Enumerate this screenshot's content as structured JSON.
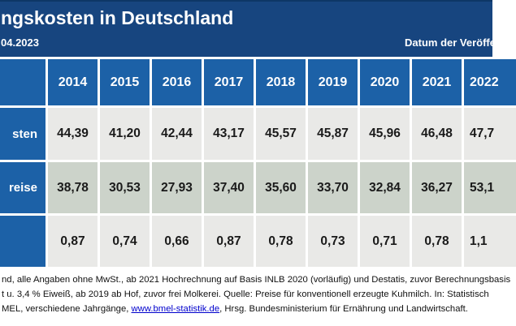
{
  "colors": {
    "banner_blue": "#17457f",
    "cell_blue": "#1c61a7",
    "row_light_gray": "#e9e9e7",
    "row_sage_green": "#ccd3ca",
    "link_blue": "#0000cc"
  },
  "header": {
    "title": "ngskosten in Deutschland",
    "date": "04.2023",
    "date_label": "Datum der Veröffe"
  },
  "table": {
    "years": [
      "2014",
      "2015",
      "2016",
      "2017",
      "2018",
      "2019",
      "2020",
      "2021",
      "2022"
    ],
    "rows": [
      {
        "label": "sten",
        "values": [
          "44,39",
          "41,20",
          "42,44",
          "43,17",
          "45,57",
          "45,87",
          "45,96",
          "46,48",
          "47,7"
        ]
      },
      {
        "label": "reise",
        "values": [
          "38,78",
          "30,53",
          "27,93",
          "37,40",
          "35,60",
          "33,70",
          "32,84",
          "36,27",
          "53,1"
        ]
      },
      {
        "label": "",
        "values": [
          "0,87",
          "0,74",
          "0,66",
          "0,87",
          "0,78",
          "0,73",
          "0,71",
          "0,78",
          "1,1"
        ]
      }
    ]
  },
  "footer": {
    "line1": "nd, alle Angaben ohne MwSt., ab 2021 Hochrechnung auf Basis INLB 2020 (vorläufig) und Destatis, zuvor Berechnungsbasis",
    "line2": "t u. 3,4 % Eiweiß, ab 2019 ab Hof, zuvor frei Molkerei. Quelle: Preise für konventionell erzeugte Kuhmilch. In: Statistisch",
    "line3_before": "MEL, verschiedene Jahrgänge, ",
    "link_text": "www.bmel-statistik.de",
    "line3_after": ", Hrsg. Bundesministerium für Ernährung und Landwirtschaft."
  },
  "chart_data": {
    "type": "table",
    "title": "ngskosten in Deutschland",
    "categories": [
      "2014",
      "2015",
      "2016",
      "2017",
      "2018",
      "2019",
      "2020",
      "2021",
      "2022"
    ],
    "series": [
      {
        "name": "sten",
        "values": [
          44.39,
          41.2,
          42.44,
          43.17,
          45.57,
          45.87,
          45.96,
          46.48,
          47.7
        ]
      },
      {
        "name": "reise",
        "values": [
          38.78,
          30.53,
          27.93,
          37.4,
          35.6,
          33.7,
          32.84,
          36.27,
          53.1
        ]
      },
      {
        "name": "",
        "values": [
          0.87,
          0.74,
          0.66,
          0.87,
          0.78,
          0.73,
          0.71,
          0.78,
          1.1
        ]
      }
    ],
    "layout": "grid table, blue header row and label column, alternating gray/sage data rows, white gaps as cell borders, cropped on left and right edges"
  }
}
